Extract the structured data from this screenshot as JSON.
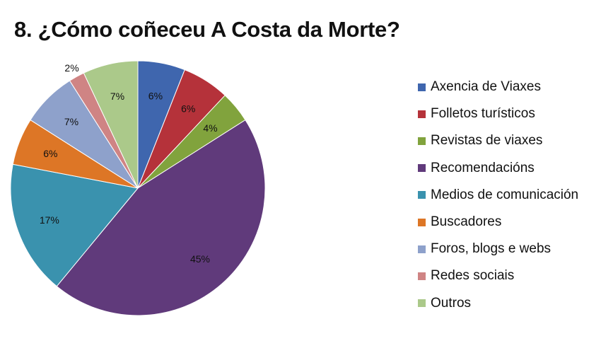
{
  "chart_data": {
    "type": "pie",
    "title": "8. ¿Cómo coñeceu A Costa da Morte?",
    "categories": [
      "Axencia de Viaxes",
      "Folletos turísticos",
      "Revistas de viaxes",
      "Recomendacións",
      "Medios de comunicación",
      "Buscadores",
      "Foros, blogs e webs",
      "Redes sociais",
      "Outros"
    ],
    "values": [
      6,
      6,
      4,
      45,
      17,
      6,
      7,
      2,
      7
    ],
    "data_labels": [
      "6%",
      "6%",
      "4%",
      "45%",
      "17%",
      "6%",
      "7%",
      "2%",
      "7%"
    ],
    "colors": [
      "#3F66AE",
      "#B5323A",
      "#81A33D",
      "#603A7B",
      "#3A92AE",
      "#DD7626",
      "#8EA1CB",
      "#CF8484",
      "#ABC98A"
    ],
    "legend_position": "right"
  }
}
